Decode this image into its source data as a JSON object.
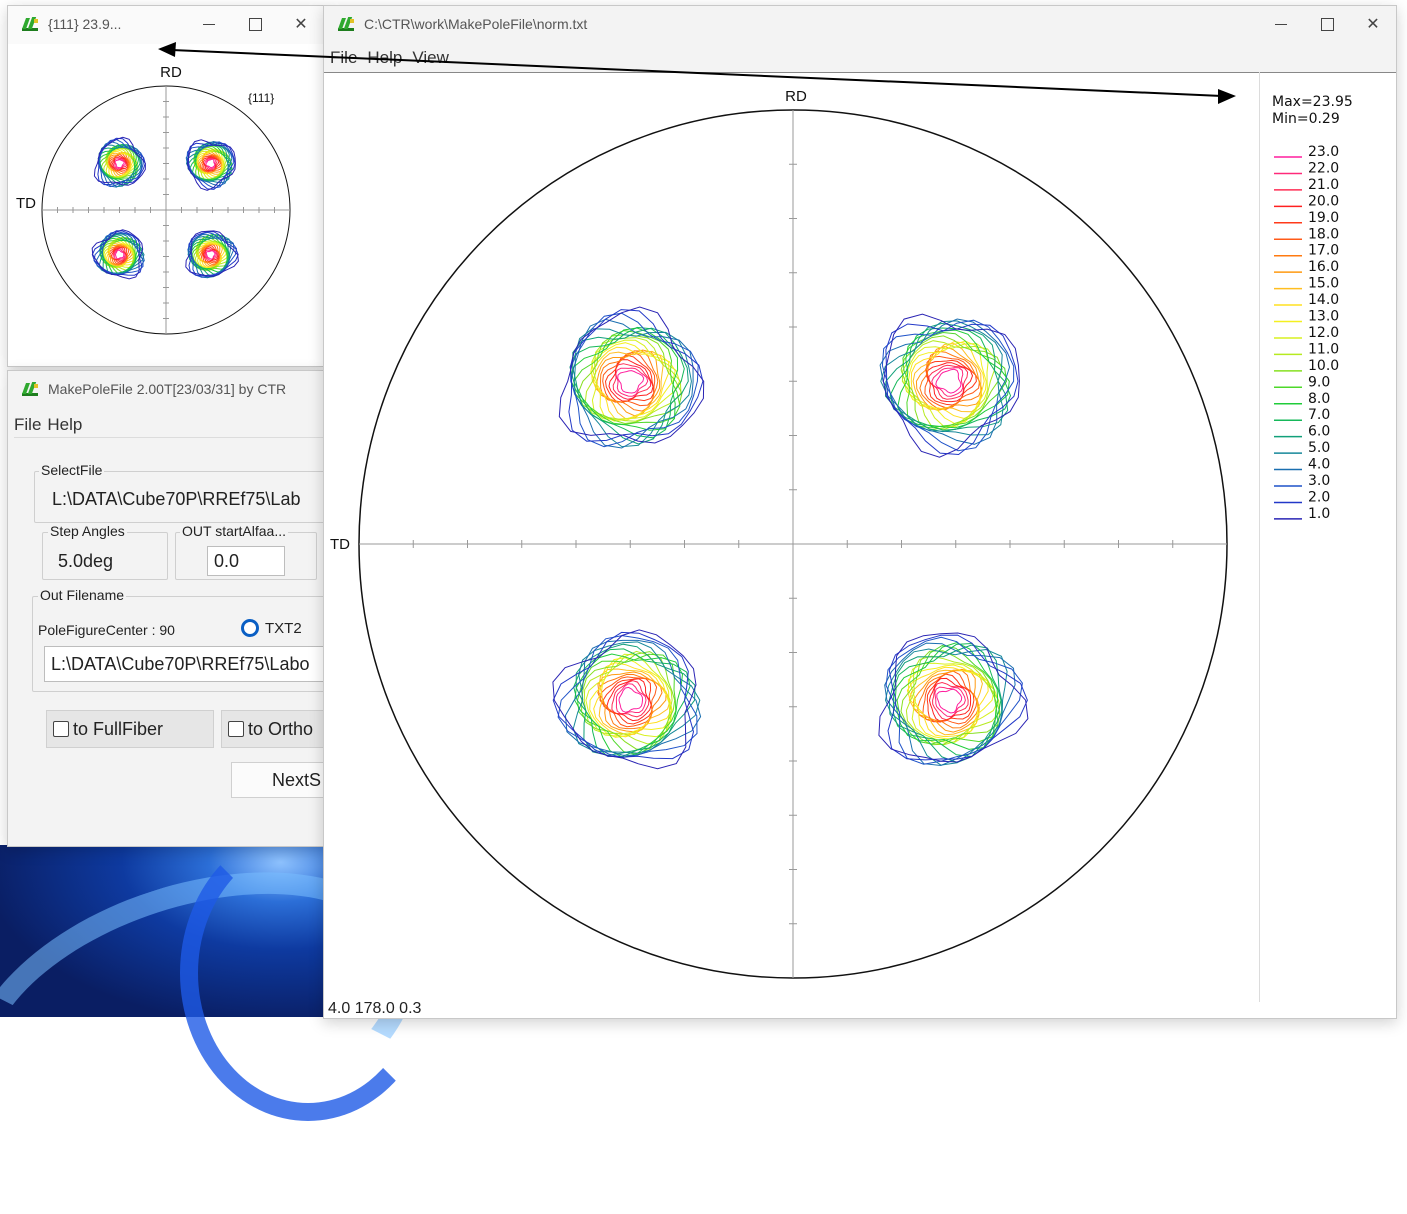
{
  "small_window": {
    "title": "{111} 23.9...",
    "label_rd": "RD",
    "label_td": "TD",
    "plane_label": "{111}"
  },
  "make_window": {
    "title": "MakePoleFile 2.00T[23/03/31] by CTR",
    "menu": [
      "File",
      "Help"
    ],
    "select_file_label": "SelectFile",
    "select_file_value": "L:\\DATA\\Cube70P\\RREf75\\Lab",
    "step_angles_label": "Step Angles",
    "step_angles_value": "5.0deg",
    "out_start_label": "OUT startAlfaa...",
    "out_start_value": "0.0",
    "out_filename_label": "Out Filename",
    "pole_center_text": "PoleFigureCenter : 90",
    "radio_label": "TXT2",
    "out_filename_value": "L:\\DATA\\Cube70P\\RREf75\\Labo",
    "chk_fullfiber": "to FullFiber",
    "chk_ortho": "to Ortho",
    "next_button": "NextS"
  },
  "main_window": {
    "title": "C:\\CTR\\work\\MakePoleFile\\norm.txt",
    "menu": [
      "File",
      "Help",
      "View"
    ],
    "label_rd": "RD",
    "label_td": "TD",
    "status": "4.0 178.0 0.3",
    "legend_max": "Max=23.95",
    "legend_min": "Min=0.29",
    "legend_levels": [
      {
        "label": "23.0",
        "color": "#ff1f9e"
      },
      {
        "label": "22.0",
        "color": "#ff2a7a"
      },
      {
        "label": "21.0",
        "color": "#ff2d55"
      },
      {
        "label": "20.0",
        "color": "#ff2020"
      },
      {
        "label": "19.0",
        "color": "#ff3a1a"
      },
      {
        "label": "18.0",
        "color": "#ff5a18"
      },
      {
        "label": "17.0",
        "color": "#ff7a10"
      },
      {
        "label": "16.0",
        "color": "#ff9a10"
      },
      {
        "label": "15.0",
        "color": "#ffbe20"
      },
      {
        "label": "14.0",
        "color": "#ffe020"
      },
      {
        "label": "13.0",
        "color": "#f4f020"
      },
      {
        "label": "12.0",
        "color": "#d8f020"
      },
      {
        "label": "11.0",
        "color": "#b6ea20"
      },
      {
        "label": "10.0",
        "color": "#86e020"
      },
      {
        "label": "9.0",
        "color": "#4ed82a"
      },
      {
        "label": "8.0",
        "color": "#20cc3a"
      },
      {
        "label": "7.0",
        "color": "#16b85a"
      },
      {
        "label": "6.0",
        "color": "#12a07a"
      },
      {
        "label": "5.0",
        "color": "#16889a"
      },
      {
        "label": "4.0",
        "color": "#1a6fb0"
      },
      {
        "label": "3.0",
        "color": "#1e52c8"
      },
      {
        "label": "2.0",
        "color": "#2238c8"
      },
      {
        "label": "1.0",
        "color": "#2a24b4"
      }
    ]
  }
}
